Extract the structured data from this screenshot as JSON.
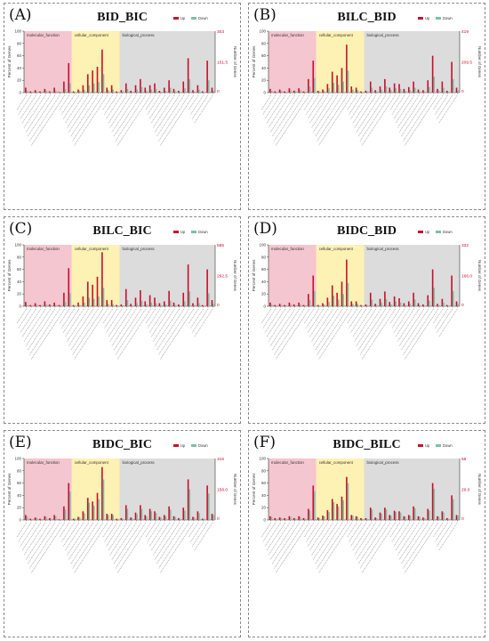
{
  "colors": {
    "up": "#c8102e",
    "down": "#7fbfa3",
    "molecular_function_bg": "#f4c6cf",
    "cellular_component_bg": "#fdf2b3",
    "biological_process_bg": "#dcdcdc",
    "right_axis_top": "#c8102e",
    "right_axis_bottom": "#7fbfa3"
  },
  "shared": {
    "legend_up": "Up",
    "legend_down": "Down",
    "ylabel_left": "Percent of Genes",
    "ylabel_right": "Number of Genes",
    "y_ticks": [
      "100",
      "80",
      "60",
      "40",
      "20",
      "0"
    ],
    "region_labels": [
      "molecular_function",
      "cellular_component",
      "biological_process"
    ]
  },
  "panels": [
    {
      "letter": "(A)",
      "title": "BID_BIC"
    },
    {
      "letter": "(B)",
      "title": "BILC_BID"
    },
    {
      "letter": "(C)",
      "title": "BILC_BIC"
    },
    {
      "letter": "(D)",
      "title": "BIDC_BID"
    },
    {
      "letter": "(E)",
      "title": "BIDC_BIC"
    },
    {
      "letter": "(F)",
      "title": "BIDC_BILC"
    }
  ],
  "chart_data": [
    {
      "type": "bar",
      "title": "BID_BIC",
      "ylabel": "Percent of Genes",
      "y2label": "Number of Genes",
      "ylim": [
        0,
        100
      ],
      "right_axis": {
        "top": "303",
        "mid": "151.5",
        "bottom": "0"
      },
      "region_counts": [
        10,
        10,
        20
      ],
      "series": [
        {
          "name": "Up",
          "values": [
            8,
            2,
            4,
            2,
            6,
            2,
            8,
            1,
            18,
            48,
            2,
            5,
            12,
            30,
            36,
            42,
            70,
            8,
            12,
            2,
            4,
            15,
            3,
            12,
            22,
            8,
            12,
            15,
            3,
            8,
            20,
            6,
            3,
            18,
            56,
            4,
            12,
            2,
            52,
            8
          ]
        },
        {
          "name": "Down",
          "values": [
            3,
            1,
            2,
            1,
            3,
            1,
            3,
            1,
            6,
            15,
            1,
            3,
            5,
            12,
            15,
            17,
            30,
            4,
            5,
            1,
            2,
            6,
            1,
            5,
            9,
            3,
            5,
            6,
            1,
            3,
            8,
            2,
            1,
            7,
            22,
            2,
            5,
            1,
            20,
            3
          ]
        }
      ]
    },
    {
      "type": "bar",
      "title": "BILC_BID",
      "ylabel": "Percent of Genes",
      "y2label": "Number of Genes",
      "ylim": [
        0,
        100
      ],
      "right_axis": {
        "top": "419",
        "mid": "209.5",
        "bottom": "0"
      },
      "region_counts": [
        10,
        10,
        20
      ],
      "series": [
        {
          "name": "Up",
          "values": [
            6,
            2,
            5,
            2,
            7,
            3,
            7,
            2,
            22,
            52,
            3,
            5,
            14,
            34,
            28,
            40,
            78,
            10,
            8,
            2,
            3,
            18,
            4,
            10,
            22,
            8,
            15,
            14,
            6,
            9,
            18,
            5,
            4,
            20,
            60,
            6,
            18,
            3,
            50,
            8
          ]
        },
        {
          "name": "Down",
          "values": [
            3,
            1,
            3,
            1,
            4,
            2,
            4,
            1,
            10,
            24,
            2,
            3,
            7,
            16,
            13,
            18,
            36,
            5,
            4,
            1,
            2,
            8,
            2,
            5,
            10,
            4,
            7,
            6,
            3,
            4,
            8,
            2,
            2,
            9,
            26,
            3,
            8,
            1,
            22,
            4
          ]
        }
      ]
    },
    {
      "type": "bar",
      "title": "BILC_BIC",
      "ylabel": "Percent of Genes",
      "y2label": "Number of Genes",
      "ylim": [
        0,
        100
      ],
      "right_axis": {
        "top": "585",
        "mid": "292.5",
        "bottom": "0"
      },
      "region_counts": [
        10,
        10,
        20
      ],
      "series": [
        {
          "name": "Up",
          "values": [
            7,
            2,
            5,
            2,
            8,
            3,
            6,
            2,
            22,
            62,
            2,
            6,
            16,
            40,
            35,
            48,
            88,
            10,
            10,
            2,
            3,
            28,
            4,
            14,
            26,
            8,
            18,
            14,
            5,
            8,
            25,
            6,
            3,
            22,
            68,
            5,
            14,
            2,
            60,
            10
          ]
        },
        {
          "name": "Down",
          "values": [
            2,
            1,
            2,
            1,
            3,
            1,
            2,
            1,
            7,
            21,
            1,
            2,
            6,
            14,
            12,
            16,
            30,
            4,
            3,
            1,
            1,
            10,
            1,
            5,
            9,
            3,
            6,
            5,
            2,
            3,
            9,
            2,
            1,
            8,
            24,
            2,
            5,
            1,
            21,
            4
          ]
        }
      ]
    },
    {
      "type": "bar",
      "title": "BIDC_BID",
      "ylabel": "Percent of Genes",
      "y2label": "Number of Genes",
      "ylim": [
        0,
        100
      ],
      "right_axis": {
        "top": "332",
        "mid": "166.0",
        "bottom": "0"
      },
      "region_counts": [
        10,
        10,
        20
      ],
      "series": [
        {
          "name": "Up",
          "values": [
            6,
            2,
            4,
            2,
            6,
            3,
            6,
            2,
            20,
            50,
            2,
            5,
            14,
            34,
            22,
            40,
            76,
            8,
            8,
            2,
            3,
            22,
            4,
            12,
            24,
            7,
            16,
            13,
            5,
            8,
            22,
            5,
            3,
            18,
            60,
            4,
            12,
            2,
            50,
            8
          ]
        },
        {
          "name": "Down",
          "values": [
            3,
            1,
            2,
            1,
            3,
            1,
            3,
            1,
            10,
            25,
            1,
            3,
            7,
            17,
            11,
            20,
            38,
            4,
            4,
            1,
            2,
            11,
            2,
            6,
            12,
            3,
            8,
            6,
            2,
            4,
            11,
            2,
            1,
            9,
            30,
            2,
            6,
            1,
            25,
            4
          ]
        }
      ]
    },
    {
      "type": "bar",
      "title": "BIDC_BIC",
      "ylabel": "Percent of Genes",
      "y2label": "Number of Genes",
      "ylim": [
        0,
        100
      ],
      "right_axis": {
        "top": "316",
        "mid": "158.0",
        "bottom": "0"
      },
      "region_counts": [
        10,
        10,
        20
      ],
      "series": [
        {
          "name": "Up",
          "values": [
            8,
            2,
            4,
            2,
            6,
            3,
            8,
            1,
            22,
            60,
            2,
            5,
            14,
            36,
            30,
            44,
            86,
            10,
            10,
            2,
            3,
            24,
            4,
            12,
            24,
            8,
            18,
            14,
            5,
            8,
            22,
            6,
            3,
            20,
            66,
            5,
            14,
            2,
            56,
            10
          ]
        },
        {
          "name": "Down",
          "values": [
            6,
            1,
            3,
            1,
            5,
            2,
            6,
            1,
            17,
            46,
            2,
            4,
            11,
            28,
            23,
            34,
            66,
            8,
            8,
            2,
            2,
            18,
            3,
            9,
            18,
            6,
            14,
            11,
            4,
            6,
            17,
            5,
            2,
            15,
            50,
            4,
            11,
            2,
            43,
            8
          ]
        }
      ]
    },
    {
      "type": "bar",
      "title": "BIDC_BILC",
      "ylabel": "Percent of Genes",
      "y2label": "Number of Genes",
      "ylim": [
        0,
        100
      ],
      "right_axis": {
        "top": "58",
        "mid": "29.0",
        "bottom": "0"
      },
      "region_counts": [
        10,
        10,
        20
      ],
      "series": [
        {
          "name": "Up",
          "values": [
            6,
            3,
            4,
            3,
            6,
            3,
            6,
            3,
            18,
            56,
            4,
            7,
            16,
            34,
            26,
            38,
            70,
            8,
            6,
            3,
            3,
            20,
            4,
            12,
            20,
            8,
            15,
            14,
            6,
            8,
            22,
            6,
            4,
            18,
            60,
            6,
            14,
            3,
            40,
            8
          ]
        },
        {
          "name": "Down",
          "values": [
            5,
            2,
            3,
            2,
            5,
            2,
            5,
            2,
            15,
            47,
            3,
            6,
            13,
            29,
            22,
            32,
            60,
            7,
            5,
            2,
            2,
            17,
            3,
            10,
            17,
            7,
            13,
            12,
            5,
            7,
            19,
            5,
            3,
            15,
            51,
            5,
            12,
            2,
            34,
            7
          ]
        }
      ]
    }
  ]
}
